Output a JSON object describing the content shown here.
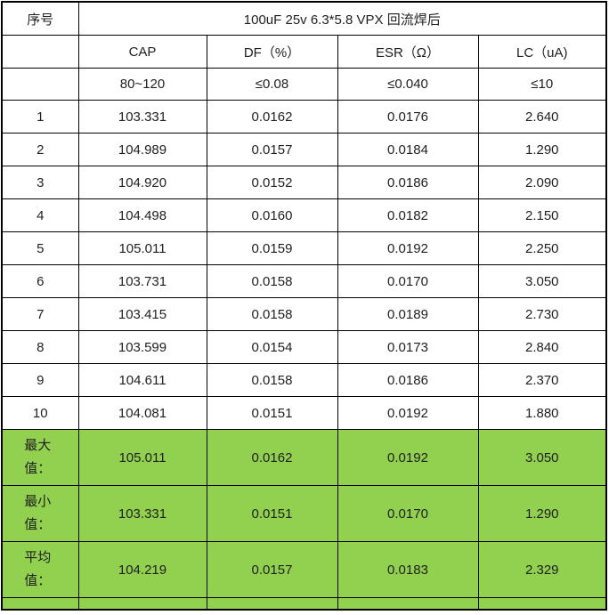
{
  "table": {
    "corner_label": "序号",
    "title": "100uF 25v 6.3*5.8 VPX 回流焊后",
    "column_headers": [
      "CAP",
      "DF（%）",
      "ESR（Ω）",
      "LC（uA)"
    ],
    "spec_limits": [
      "80~120",
      "≤0.08",
      "≤0.040",
      "≤10"
    ],
    "rows": [
      {
        "no": "1",
        "cap": "103.331",
        "df": "0.0162",
        "esr": "0.0176",
        "lc": "2.640"
      },
      {
        "no": "2",
        "cap": "104.989",
        "df": "0.0157",
        "esr": "0.0184",
        "lc": "1.290"
      },
      {
        "no": "3",
        "cap": "104.920",
        "df": "0.0152",
        "esr": "0.0186",
        "lc": "2.090"
      },
      {
        "no": "4",
        "cap": "104.498",
        "df": "0.0160",
        "esr": "0.0182",
        "lc": "2.150"
      },
      {
        "no": "5",
        "cap": "105.011",
        "df": "0.0159",
        "esr": "0.0192",
        "lc": "2.250"
      },
      {
        "no": "6",
        "cap": "103.731",
        "df": "0.0158",
        "esr": "0.0170",
        "lc": "3.050"
      },
      {
        "no": "7",
        "cap": "103.415",
        "df": "0.0158",
        "esr": "0.0189",
        "lc": "2.730"
      },
      {
        "no": "8",
        "cap": "103.599",
        "df": "0.0154",
        "esr": "0.0173",
        "lc": "2.840"
      },
      {
        "no": "9",
        "cap": "104.611",
        "df": "0.0158",
        "esr": "0.0186",
        "lc": "2.370"
      },
      {
        "no": "10",
        "cap": "104.081",
        "df": "0.0151",
        "esr": "0.0192",
        "lc": "1.880"
      }
    ],
    "summary": [
      {
        "label": "最大值：",
        "cap": "105.011",
        "df": "0.0162",
        "esr": "0.0192",
        "lc": "3.050"
      },
      {
        "label": "最小值：",
        "cap": "103.331",
        "df": "0.0151",
        "esr": "0.0170",
        "lc": "1.290"
      },
      {
        "label": "平均值：",
        "cap": "104.219",
        "df": "0.0157",
        "esr": "0.0183",
        "lc": "2.329"
      }
    ]
  },
  "colors": {
    "summary_highlight": "#92D050",
    "border": "#000000",
    "text": "#1F1F1F",
    "background": "#FFFFFF"
  }
}
